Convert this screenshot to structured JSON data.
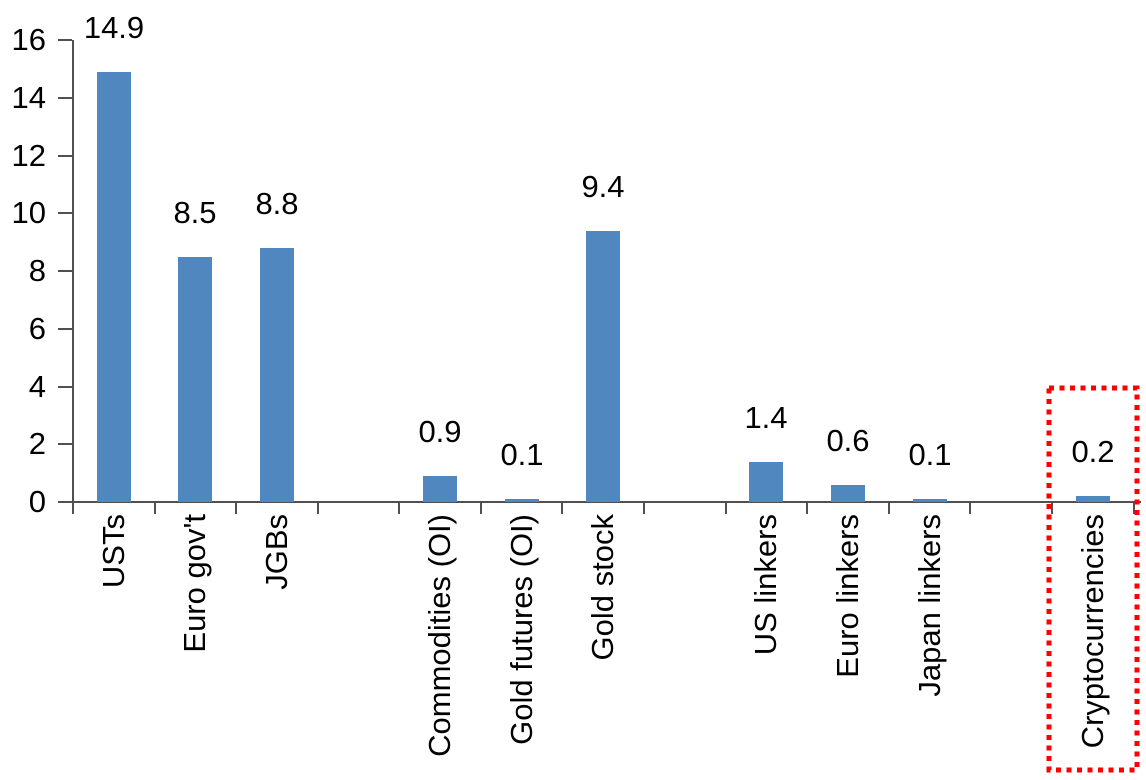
{
  "chart_data": {
    "type": "bar",
    "title": "",
    "xlabel": "",
    "ylabel": "",
    "ylim": [
      0,
      16
    ],
    "yticks": [
      0,
      2,
      4,
      6,
      8,
      10,
      12,
      14,
      16
    ],
    "num_slots": 13,
    "grid": false,
    "legend": null,
    "bars": [
      {
        "label": "USTs",
        "value": 14.9,
        "value_label": "14.9",
        "slot": 0,
        "highlighted": false
      },
      {
        "label": "Euro gov't",
        "value": 8.5,
        "value_label": "8.5",
        "slot": 1,
        "highlighted": false
      },
      {
        "label": "JGBs",
        "value": 8.8,
        "value_label": "8.8",
        "slot": 2,
        "highlighted": false
      },
      {
        "label": "Commodities (OI)",
        "value": 0.9,
        "value_label": "0.9",
        "slot": 4,
        "highlighted": false
      },
      {
        "label": "Gold futures (OI)",
        "value": 0.1,
        "value_label": "0.1",
        "slot": 5,
        "highlighted": false
      },
      {
        "label": "Gold stock",
        "value": 9.4,
        "value_label": "9.4",
        "slot": 6,
        "highlighted": false
      },
      {
        "label": "US linkers",
        "value": 1.4,
        "value_label": "1.4",
        "slot": 8,
        "highlighted": false
      },
      {
        "label": "Euro linkers",
        "value": 0.6,
        "value_label": "0.6",
        "slot": 9,
        "highlighted": false
      },
      {
        "label": "Japan linkers",
        "value": 0.1,
        "value_label": "0.1",
        "slot": 10,
        "highlighted": false
      },
      {
        "label": "Cryptocurrencies",
        "value": 0.2,
        "value_label": "0.2",
        "slot": 12,
        "highlighted": true
      }
    ],
    "colors": {
      "bar": "#5087BE",
      "axis": "#505050",
      "text": "#000000",
      "highlight_box": "#FF0000"
    },
    "highlight": {
      "target": "Cryptocurrencies",
      "style": "red-dotted-rectangle"
    }
  }
}
